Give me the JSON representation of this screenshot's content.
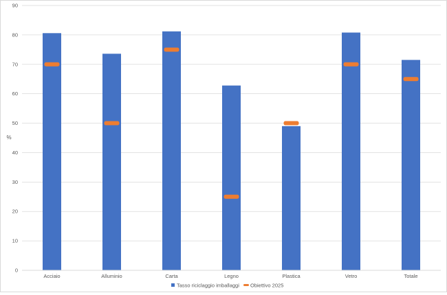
{
  "chart_data": {
    "type": "bar",
    "categories": [
      "Acciaio",
      "Alluminio",
      "Carta",
      "Legno",
      "Plastica",
      "Vetro",
      "Totale"
    ],
    "series": [
      {
        "name": "Tasso riciclaggio imballaggi",
        "kind": "bar",
        "values": [
          80.6,
          73.6,
          81.2,
          62.8,
          49.0,
          80.8,
          71.5
        ]
      },
      {
        "name": "Obiettivo 2025",
        "kind": "marker",
        "values": [
          70,
          50,
          75,
          25,
          50,
          70,
          65
        ]
      }
    ],
    "title": "",
    "xlabel": "",
    "ylabel": "%",
    "ylim": [
      0,
      90
    ],
    "yticks": [
      0,
      10,
      20,
      30,
      40,
      50,
      60,
      70,
      80,
      90
    ],
    "grid": true,
    "legend_position": "bottom",
    "colors": {
      "bars": "#4472c4",
      "target": "#ed7d31",
      "grid": "#d9d9d9",
      "text": "#595959"
    }
  }
}
